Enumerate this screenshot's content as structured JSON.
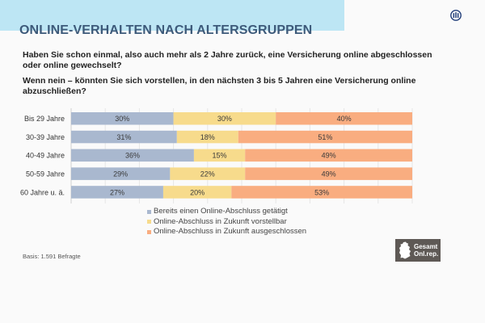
{
  "header": {
    "title": "ONLINE-VERHALTEN NACH ALTERSGRUPPEN",
    "logo_icon": "allianz-logo-icon"
  },
  "questions": [
    "Haben Sie schon einmal, also auch mehr als 2 Jahre zurück, eine Versicherung online abgeschlossen oder online gewechselt?",
    "Wenn nein – könnten Sie sich vorstellen, in den nächsten 3 bis 5 Jahren eine Versicherung online abzuschließen?"
  ],
  "footer": {
    "basis": "Basis: 1.591 Befragte",
    "badge_line1": "Gesamt",
    "badge_line2": "Onl.rep.",
    "badge_icon": "germany-map-icon"
  },
  "chart_data": {
    "type": "bar",
    "orientation": "horizontal",
    "stacked": true,
    "categories": [
      "Bis 29 Jahre",
      "30-39 Jahre",
      "40-49 Jahre",
      "50-59 Jahre",
      "60 Jahre u. ä."
    ],
    "series": [
      {
        "name": "Bereits einen Online-Abschluss getätigt",
        "color": "#a9b8cf",
        "values": [
          30,
          31,
          36,
          29,
          27
        ]
      },
      {
        "name": "Online-Abschluss in Zukunft vorstellbar",
        "color": "#f7db8c",
        "values": [
          30,
          18,
          15,
          22,
          20
        ]
      },
      {
        "name": "Online-Abschluss in Zukunft ausgeschlossen",
        "color": "#f9ad80",
        "values": [
          40,
          51,
          49,
          49,
          53
        ]
      }
    ],
    "value_suffix": "%",
    "xlim": [
      0,
      100
    ],
    "grid": true,
    "legend_position": "bottom-center",
    "title": "",
    "xlabel": "",
    "ylabel": ""
  }
}
